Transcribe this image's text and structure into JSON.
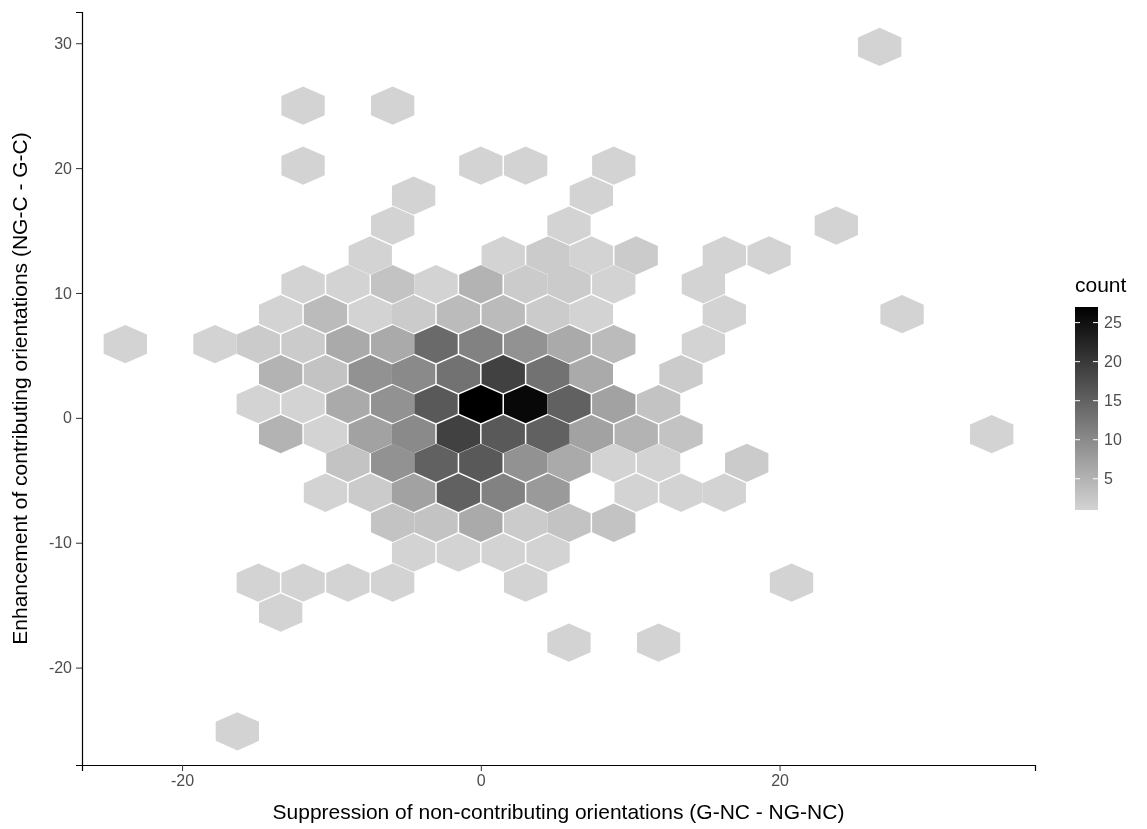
{
  "chart_data": {
    "type": "scatter",
    "xlabel": "Suppression of non-contributing orientations (G-NC - NG-NC)",
    "ylabel": "Enhancement of contributing orientations (NG-C - G-C)",
    "clabel": "count",
    "x": [
      26.7,
      -11.9,
      -5.9,
      -11.9,
      0,
      3.0,
      8.9,
      -4.5,
      7.4,
      -5.9,
      5.9,
      23.8,
      -7.4,
      1.5,
      4.5,
      7.4,
      10.4,
      16.3,
      19.3,
      -11.9,
      -8.9,
      -5.9,
      -3.0,
      0,
      3.0,
      5.9,
      8.9,
      14.9,
      -13.4,
      -10.4,
      -7.4,
      -4.5,
      -1.5,
      1.5,
      4.5,
      7.4,
      16.3,
      28.2,
      -23.8,
      -17.8,
      -14.9,
      -11.9,
      -8.9,
      -5.9,
      -3.0,
      0,
      3.0,
      5.9,
      8.9,
      14.9,
      -13.4,
      -10.4,
      -7.4,
      -4.5,
      -1.5,
      1.5,
      4.5,
      7.4,
      13.4,
      -14.9,
      -11.9,
      -8.9,
      -5.9,
      -3.0,
      0,
      3.0,
      5.9,
      8.9,
      11.9,
      -13.4,
      -10.4,
      -7.4,
      -4.5,
      -1.5,
      1.5,
      4.5,
      7.4,
      10.4,
      13.4,
      34.2,
      -8.9,
      -5.9,
      -3.0,
      0,
      3.0,
      5.9,
      8.9,
      11.9,
      17.8,
      -10.4,
      -7.4,
      -4.5,
      -1.5,
      1.5,
      4.5,
      10.4,
      13.4,
      16.3,
      -5.9,
      -3.0,
      0,
      3.0,
      5.9,
      8.9,
      -4.5,
      -1.5,
      1.5,
      4.5,
      -14.9,
      -11.9,
      -8.9,
      -5.9,
      3.0,
      20.8,
      -13.4,
      5.9,
      11.9,
      -16.3
    ],
    "values": [
      29.7,
      25.0,
      25.0,
      20.2,
      20.2,
      20.2,
      20.2,
      17.8,
      17.8,
      15.4,
      15.4,
      15.4,
      13.0,
      13.0,
      13.0,
      13.0,
      13.0,
      13.0,
      13.0,
      10.7,
      10.7,
      10.7,
      10.7,
      10.7,
      10.7,
      10.7,
      10.7,
      10.7,
      8.3,
      8.3,
      8.3,
      8.3,
      8.3,
      8.3,
      8.3,
      8.3,
      8.3,
      8.3,
      5.9,
      5.9,
      5.9,
      5.9,
      5.9,
      5.9,
      5.9,
      5.9,
      5.9,
      5.9,
      5.9,
      5.9,
      3.5,
      3.5,
      3.5,
      3.5,
      3.5,
      3.5,
      3.5,
      3.5,
      3.5,
      1.1,
      1.1,
      1.1,
      1.1,
      1.1,
      1.1,
      1.1,
      1.1,
      1.1,
      1.1,
      -1.3,
      -1.3,
      -1.3,
      -1.3,
      -1.3,
      -1.3,
      -1.3,
      -1.3,
      -1.3,
      -1.3,
      -1.3,
      -3.6,
      -3.6,
      -3.6,
      -3.6,
      -3.6,
      -3.6,
      -3.6,
      -3.6,
      -3.6,
      -6.0,
      -6.0,
      -6.0,
      -6.0,
      -6.0,
      -6.0,
      -6.0,
      -6.0,
      -6.0,
      -8.4,
      -8.4,
      -8.4,
      -8.4,
      -8.4,
      -8.4,
      -10.8,
      -10.8,
      -10.8,
      -10.8,
      -13.2,
      -13.2,
      -13.2,
      -13.2,
      -13.2,
      -13.2,
      -15.6,
      -18.0,
      -18.0,
      -25.1
    ],
    "cvalues": [
      1,
      1,
      1,
      1,
      1,
      1,
      1,
      1,
      1,
      1,
      1,
      1,
      1,
      1,
      2,
      1,
      2,
      1,
      1,
      1,
      1,
      3,
      1,
      5,
      2,
      2,
      1,
      1,
      1,
      4,
      1,
      2,
      4,
      4,
      2,
      1,
      1,
      1,
      1,
      1,
      2,
      2,
      6,
      6,
      14,
      11,
      9,
      6,
      4,
      1,
      5,
      3,
      9,
      10,
      13,
      19,
      13,
      6,
      2,
      1,
      1,
      6,
      9,
      16,
      27,
      26,
      15,
      7,
      3,
      5,
      1,
      7,
      10,
      19,
      16,
      15,
      7,
      5,
      3,
      1,
      3,
      9,
      15,
      16,
      9,
      6,
      1,
      1,
      2,
      1,
      2,
      7,
      15,
      11,
      8,
      1,
      1,
      1,
      3,
      3,
      6,
      2,
      3,
      3,
      1,
      1,
      1,
      1,
      1,
      1,
      1,
      1,
      1,
      1,
      1,
      1,
      1,
      1
    ],
    "xlim": [
      -26.7,
      37.1
    ],
    "ylim": [
      -27.8,
      32.5
    ],
    "xticks": [
      -20,
      0,
      20
    ],
    "yticks": [
      -20,
      -10,
      0,
      10,
      20,
      30
    ],
    "clim": [
      1,
      27
    ],
    "cticks": [
      5,
      10,
      15,
      20,
      25
    ]
  }
}
